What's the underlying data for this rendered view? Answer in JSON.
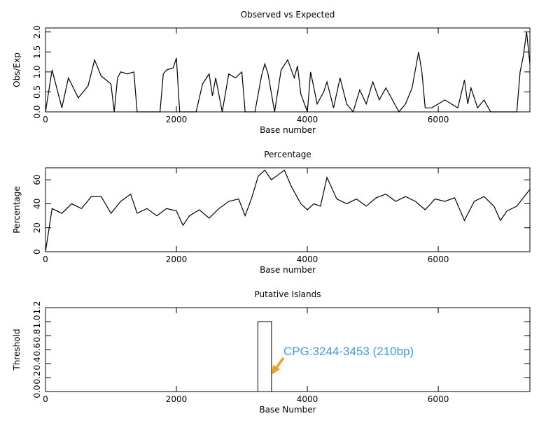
{
  "chart_data": [
    {
      "type": "line",
      "title": "Observed vs Expected",
      "xlabel": "Base number",
      "ylabel": "Obs/Exp",
      "xlim": [
        0,
        7400
      ],
      "ylim": [
        0,
        2.1
      ],
      "xticks": [
        "0",
        "2000",
        "4000",
        "6000"
      ],
      "yticks": [
        "0.0",
        "0.5",
        "1.0",
        "1.5",
        "2.0"
      ],
      "x": [
        0,
        100,
        250,
        350,
        500,
        650,
        750,
        850,
        1000,
        1050,
        1100,
        1150,
        1250,
        1350,
        1400,
        1500,
        1600,
        1750,
        1800,
        1850,
        1950,
        2000,
        2050,
        2100,
        2300,
        2400,
        2500,
        2550,
        2600,
        2700,
        2800,
        2900,
        3000,
        3050,
        3100,
        3200,
        3300,
        3350,
        3400,
        3500,
        3600,
        3700,
        3800,
        3850,
        3900,
        4000,
        4050,
        4150,
        4250,
        4300,
        4400,
        4500,
        4600,
        4700,
        4800,
        4900,
        5000,
        5100,
        5200,
        5300,
        5400,
        5500,
        5600,
        5700,
        5750,
        5800,
        5900,
        6000,
        6100,
        6200,
        6300,
        6400,
        6450,
        6500,
        6600,
        6700,
        6800,
        6900,
        7000,
        7100,
        7200,
        7250,
        7300,
        7350,
        7400
      ],
      "series": [
        {
          "values": [
            0.0,
            1.05,
            0.1,
            0.85,
            0.35,
            0.65,
            1.3,
            0.9,
            0.7,
            0.0,
            0.85,
            1.0,
            0.95,
            1.0,
            0.0,
            0.0,
            0.0,
            0.0,
            0.95,
            1.05,
            1.1,
            1.35,
            0.0,
            0.0,
            0.0,
            0.7,
            0.95,
            0.4,
            0.85,
            0.0,
            0.95,
            0.85,
            1.0,
            0.0,
            0.0,
            0.0,
            0.9,
            1.2,
            0.95,
            0.0,
            1.05,
            1.3,
            0.85,
            1.15,
            0.45,
            0.0,
            1.0,
            0.2,
            0.5,
            0.75,
            0.1,
            0.85,
            0.2,
            0.0,
            0.55,
            0.2,
            0.75,
            0.3,
            0.6,
            0.3,
            0.0,
            0.2,
            0.6,
            1.5,
            1.0,
            0.1,
            0.1,
            0.2,
            0.3,
            0.2,
            0.1,
            0.8,
            0.2,
            0.6,
            0.1,
            0.3,
            0.0,
            0.0,
            0.0,
            0.0,
            0.0,
            1.0,
            1.4,
            2.0,
            1.2
          ]
        }
      ]
    },
    {
      "type": "line",
      "title": "Percentage",
      "xlabel": "Base number",
      "ylabel": "Percentage",
      "xlim": [
        0,
        7400
      ],
      "ylim": [
        0,
        70
      ],
      "xticks": [
        "0",
        "2000",
        "4000",
        "6000"
      ],
      "yticks": [
        "0",
        "20",
        "40",
        "60"
      ],
      "x": [
        0,
        100,
        250,
        400,
        550,
        700,
        850,
        1000,
        1150,
        1300,
        1400,
        1550,
        1700,
        1850,
        2000,
        2100,
        2200,
        2350,
        2500,
        2650,
        2800,
        2950,
        3050,
        3150,
        3250,
        3350,
        3450,
        3550,
        3650,
        3750,
        3900,
        4000,
        4100,
        4200,
        4300,
        4450,
        4600,
        4750,
        4900,
        5050,
        5200,
        5350,
        5500,
        5650,
        5800,
        5950,
        6100,
        6250,
        6400,
        6550,
        6700,
        6850,
        6950,
        7050,
        7200,
        7300,
        7400
      ],
      "series": [
        {
          "values": [
            0,
            36,
            32,
            40,
            36,
            46,
            46,
            32,
            42,
            48,
            32,
            36,
            30,
            36,
            34,
            22,
            30,
            35,
            28,
            36,
            42,
            44,
            30,
            45,
            63,
            68,
            60,
            64,
            68,
            55,
            40,
            35,
            40,
            38,
            62,
            44,
            40,
            44,
            38,
            45,
            48,
            42,
            46,
            42,
            35,
            44,
            42,
            45,
            26,
            42,
            46,
            38,
            26,
            34,
            38,
            45,
            52
          ]
        }
      ]
    },
    {
      "type": "bar",
      "title": "Putative Islands",
      "xlabel": "Base Number",
      "ylabel": "Threshold",
      "xlim": [
        0,
        7400
      ],
      "ylim": [
        0,
        1.2
      ],
      "xticks": [
        "0",
        "2000",
        "4000",
        "6000"
      ],
      "yticks": [
        "0.0",
        "0.2",
        "0.4",
        "0.6",
        "0.8",
        "1.0",
        "1.2"
      ],
      "bars": [
        {
          "start": 3244,
          "end": 3453,
          "value": 1.0
        }
      ],
      "annotation": "CPG:3244-3453 (210bp)",
      "annotation_color": "#3d9be9",
      "arrow_color": "#f0a020"
    }
  ]
}
